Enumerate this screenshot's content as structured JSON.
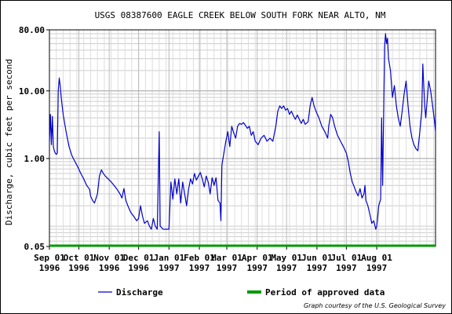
{
  "chart_data": {
    "type": "line",
    "title": "USGS 08387600 EAGLE CREEK BELOW SOUTH FORK NEAR ALTO, NM",
    "ylabel": "Discharge, cubic feet per second",
    "xlabel": "",
    "y_scale": "log",
    "ylim": [
      0.05,
      80
    ],
    "y_ticks": [
      {
        "value": 0.05,
        "label": "0.05"
      },
      {
        "value": 1,
        "label": "1.00"
      },
      {
        "value": 10,
        "label": "10.00"
      },
      {
        "value": 80,
        "label": "80.00"
      }
    ],
    "xlim": [
      "1996-09-01",
      "1997-09-30"
    ],
    "x_ticks": [
      {
        "date": "1996-09-01",
        "label": "Sep 01",
        "year": "1996"
      },
      {
        "date": "1996-10-01",
        "label": "Oct 01",
        "year": "1996"
      },
      {
        "date": "1996-11-01",
        "label": "Nov 01",
        "year": "1996"
      },
      {
        "date": "1996-12-01",
        "label": "Dec 01",
        "year": "1996"
      },
      {
        "date": "1997-01-01",
        "label": "Jan 01",
        "year": "1997"
      },
      {
        "date": "1997-02-01",
        "label": "Feb 01",
        "year": "1997"
      },
      {
        "date": "1997-03-01",
        "label": "Mar 01",
        "year": "1997"
      },
      {
        "date": "1997-04-01",
        "label": "Apr 01",
        "year": "1997"
      },
      {
        "date": "1997-05-01",
        "label": "May 01",
        "year": "1997"
      },
      {
        "date": "1997-06-01",
        "label": "Jun 01",
        "year": "1997"
      },
      {
        "date": "1997-07-01",
        "label": "Jul 01",
        "year": "1997"
      },
      {
        "date": "1997-08-01",
        "label": "Aug 01",
        "year": "1997"
      }
    ],
    "grid": true,
    "series": [
      {
        "name": "Discharge",
        "color": "#0000cc",
        "points": [
          [
            "1996-09-01",
            1.8
          ],
          [
            "1996-09-02",
            4.5
          ],
          [
            "1996-09-03",
            1.6
          ],
          [
            "1996-09-04",
            4.2
          ],
          [
            "1996-09-05",
            1.5
          ],
          [
            "1996-09-06",
            1.3
          ],
          [
            "1996-09-07",
            1.2
          ],
          [
            "1996-09-08",
            1.15
          ],
          [
            "1996-09-09",
            1.2
          ],
          [
            "1996-09-10",
            10.0
          ],
          [
            "1996-09-11",
            15.5
          ],
          [
            "1996-09-12",
            12.0
          ],
          [
            "1996-09-13",
            8.0
          ],
          [
            "1996-09-15",
            4.5
          ],
          [
            "1996-09-18",
            2.5
          ],
          [
            "1996-09-21",
            1.5
          ],
          [
            "1996-09-24",
            1.1
          ],
          [
            "1996-09-27",
            0.9
          ],
          [
            "1996-09-30",
            0.75
          ],
          [
            "1996-10-03",
            0.6
          ],
          [
            "1996-10-06",
            0.5
          ],
          [
            "1996-10-09",
            0.4
          ],
          [
            "1996-10-12",
            0.35
          ],
          [
            "1996-10-13",
            0.28
          ],
          [
            "1996-10-15",
            0.24
          ],
          [
            "1996-10-17",
            0.22
          ],
          [
            "1996-10-20",
            0.3
          ],
          [
            "1996-10-22",
            0.55
          ],
          [
            "1996-10-24",
            0.68
          ],
          [
            "1996-10-26",
            0.6
          ],
          [
            "1996-10-28",
            0.55
          ],
          [
            "1996-10-31",
            0.5
          ],
          [
            "1996-11-03",
            0.45
          ],
          [
            "1996-11-06",
            0.4
          ],
          [
            "1996-11-09",
            0.35
          ],
          [
            "1996-11-12",
            0.3
          ],
          [
            "1996-11-14",
            0.26
          ],
          [
            "1996-11-16",
            0.36
          ],
          [
            "1996-11-18",
            0.24
          ],
          [
            "1996-11-20",
            0.2
          ],
          [
            "1996-11-23",
            0.16
          ],
          [
            "1996-11-26",
            0.14
          ],
          [
            "1996-11-29",
            0.12
          ],
          [
            "1996-12-01",
            0.13
          ],
          [
            "1996-12-03",
            0.2
          ],
          [
            "1996-12-05",
            0.14
          ],
          [
            "1996-12-07",
            0.11
          ],
          [
            "1996-12-10",
            0.12
          ],
          [
            "1996-12-12",
            0.1
          ],
          [
            "1996-12-14",
            0.09
          ],
          [
            "1996-12-16",
            0.13
          ],
          [
            "1996-12-18",
            0.1
          ],
          [
            "1996-12-20",
            0.09
          ],
          [
            "1996-12-22",
            2.5
          ],
          [
            "1996-12-23",
            0.1
          ],
          [
            "1996-12-26",
            0.09
          ],
          [
            "1996-12-29",
            0.09
          ],
          [
            "1997-01-01",
            0.09
          ],
          [
            "1997-01-03",
            0.45
          ],
          [
            "1997-01-05",
            0.25
          ],
          [
            "1997-01-07",
            0.5
          ],
          [
            "1997-01-09",
            0.3
          ],
          [
            "1997-01-11",
            0.5
          ],
          [
            "1997-01-13",
            0.22
          ],
          [
            "1997-01-15",
            0.45
          ],
          [
            "1997-01-17",
            0.3
          ],
          [
            "1997-01-19",
            0.2
          ],
          [
            "1997-01-21",
            0.35
          ],
          [
            "1997-01-23",
            0.5
          ],
          [
            "1997-01-25",
            0.42
          ],
          [
            "1997-01-27",
            0.6
          ],
          [
            "1997-01-29",
            0.48
          ],
          [
            "1997-01-31",
            0.55
          ],
          [
            "1997-02-02",
            0.62
          ],
          [
            "1997-02-04",
            0.5
          ],
          [
            "1997-02-06",
            0.38
          ],
          [
            "1997-02-08",
            0.55
          ],
          [
            "1997-02-10",
            0.45
          ],
          [
            "1997-02-12",
            0.3
          ],
          [
            "1997-02-14",
            0.52
          ],
          [
            "1997-02-16",
            0.4
          ],
          [
            "1997-02-18",
            0.52
          ],
          [
            "1997-02-20",
            0.24
          ],
          [
            "1997-02-22",
            0.22
          ],
          [
            "1997-02-23",
            0.12
          ],
          [
            "1997-02-24",
            0.8
          ],
          [
            "1997-02-26",
            1.2
          ],
          [
            "1997-02-28",
            1.8
          ],
          [
            "1997-03-02",
            2.5
          ],
          [
            "1997-03-04",
            1.5
          ],
          [
            "1997-03-06",
            3.0
          ],
          [
            "1997-03-08",
            2.4
          ],
          [
            "1997-03-10",
            2.0
          ],
          [
            "1997-03-12",
            3.0
          ],
          [
            "1997-03-14",
            3.3
          ],
          [
            "1997-03-16",
            3.2
          ],
          [
            "1997-03-18",
            3.4
          ],
          [
            "1997-03-20",
            3.1
          ],
          [
            "1997-03-22",
            2.8
          ],
          [
            "1997-03-24",
            3.0
          ],
          [
            "1997-03-26",
            2.2
          ],
          [
            "1997-03-28",
            2.5
          ],
          [
            "1997-03-30",
            1.8
          ],
          [
            "1997-04-02",
            1.6
          ],
          [
            "1997-04-05",
            2.0
          ],
          [
            "1997-04-08",
            2.2
          ],
          [
            "1997-04-11",
            1.8
          ],
          [
            "1997-04-14",
            2.0
          ],
          [
            "1997-04-17",
            1.8
          ],
          [
            "1997-04-20",
            3.0
          ],
          [
            "1997-04-22",
            5.0
          ],
          [
            "1997-04-24",
            6.0
          ],
          [
            "1997-04-26",
            5.5
          ],
          [
            "1997-04-28",
            6.0
          ],
          [
            "1997-04-30",
            5.2
          ],
          [
            "1997-05-02",
            5.5
          ],
          [
            "1997-05-04",
            4.5
          ],
          [
            "1997-05-06",
            5.0
          ],
          [
            "1997-05-08",
            4.3
          ],
          [
            "1997-05-10",
            3.8
          ],
          [
            "1997-05-12",
            4.4
          ],
          [
            "1997-05-14",
            3.8
          ],
          [
            "1997-05-16",
            3.3
          ],
          [
            "1997-05-18",
            3.8
          ],
          [
            "1997-05-20",
            3.2
          ],
          [
            "1997-05-23",
            3.5
          ],
          [
            "1997-05-25",
            6.0
          ],
          [
            "1997-05-27",
            8.0
          ],
          [
            "1997-05-29",
            6.0
          ],
          [
            "1997-05-31",
            5.0
          ],
          [
            "1997-06-03",
            4.0
          ],
          [
            "1997-06-06",
            3.0
          ],
          [
            "1997-06-09",
            2.5
          ],
          [
            "1997-06-12",
            2.0
          ],
          [
            "1997-06-13",
            3.0
          ],
          [
            "1997-06-15",
            4.5
          ],
          [
            "1997-06-17",
            4.0
          ],
          [
            "1997-06-19",
            3.0
          ],
          [
            "1997-06-22",
            2.2
          ],
          [
            "1997-06-25",
            1.8
          ],
          [
            "1997-06-28",
            1.5
          ],
          [
            "1997-07-01",
            1.2
          ],
          [
            "1997-07-03",
            0.9
          ],
          [
            "1997-07-05",
            0.6
          ],
          [
            "1997-07-07",
            0.45
          ],
          [
            "1997-07-09",
            0.38
          ],
          [
            "1997-07-11",
            0.32
          ],
          [
            "1997-07-13",
            0.28
          ],
          [
            "1997-07-15",
            0.36
          ],
          [
            "1997-07-17",
            0.26
          ],
          [
            "1997-07-19",
            0.3
          ],
          [
            "1997-07-20",
            0.4
          ],
          [
            "1997-07-21",
            0.24
          ],
          [
            "1997-07-23",
            0.2
          ],
          [
            "1997-07-25",
            0.15
          ],
          [
            "1997-07-27",
            0.11
          ],
          [
            "1997-07-29",
            0.12
          ],
          [
            "1997-07-31",
            0.09
          ],
          [
            "1997-08-01",
            0.1
          ],
          [
            "1997-08-03",
            0.2
          ],
          [
            "1997-08-05",
            0.25
          ],
          [
            "1997-08-06",
            4.0
          ],
          [
            "1997-08-07",
            0.4
          ],
          [
            "1997-08-09",
            45.0
          ],
          [
            "1997-08-10",
            70.0
          ],
          [
            "1997-08-11",
            50.0
          ],
          [
            "1997-08-12",
            60.0
          ],
          [
            "1997-08-13",
            30.0
          ],
          [
            "1997-08-15",
            20.0
          ],
          [
            "1997-08-17",
            8.0
          ],
          [
            "1997-08-19",
            12.0
          ],
          [
            "1997-08-21",
            6.0
          ],
          [
            "1997-08-23",
            4.0
          ],
          [
            "1997-08-25",
            3.0
          ],
          [
            "1997-08-27",
            5.0
          ],
          [
            "1997-08-29",
            9.0
          ],
          [
            "1997-08-31",
            14.0
          ],
          [
            "1997-09-02",
            6.0
          ],
          [
            "1997-09-04",
            3.0
          ],
          [
            "1997-09-06",
            2.0
          ],
          [
            "1997-09-08",
            1.6
          ],
          [
            "1997-09-10",
            1.4
          ],
          [
            "1997-09-12",
            1.3
          ],
          [
            "1997-09-14",
            2.5
          ],
          [
            "1997-09-16",
            5.0
          ],
          [
            "1997-09-17",
            25.0
          ],
          [
            "1997-09-18",
            12.0
          ],
          [
            "1997-09-19",
            6.0
          ],
          [
            "1997-09-20",
            4.0
          ],
          [
            "1997-09-22",
            9.0
          ],
          [
            "1997-09-23",
            14.0
          ],
          [
            "1997-09-25",
            10.0
          ],
          [
            "1997-09-27",
            6.0
          ],
          [
            "1997-09-29",
            3.5
          ],
          [
            "1997-09-30",
            2.5
          ]
        ]
      },
      {
        "name": "Period of approved data",
        "color": "#009900",
        "value": 0.05,
        "start": "1996-09-01",
        "end": "1997-09-30"
      }
    ],
    "legend": {
      "position": "bottom",
      "items": [
        {
          "label": "Discharge",
          "color": "#0000cc"
        },
        {
          "label": "Period of approved data",
          "color": "#009900"
        }
      ]
    },
    "credit": "Graph courtesy of the U.S. Geological Survey"
  }
}
